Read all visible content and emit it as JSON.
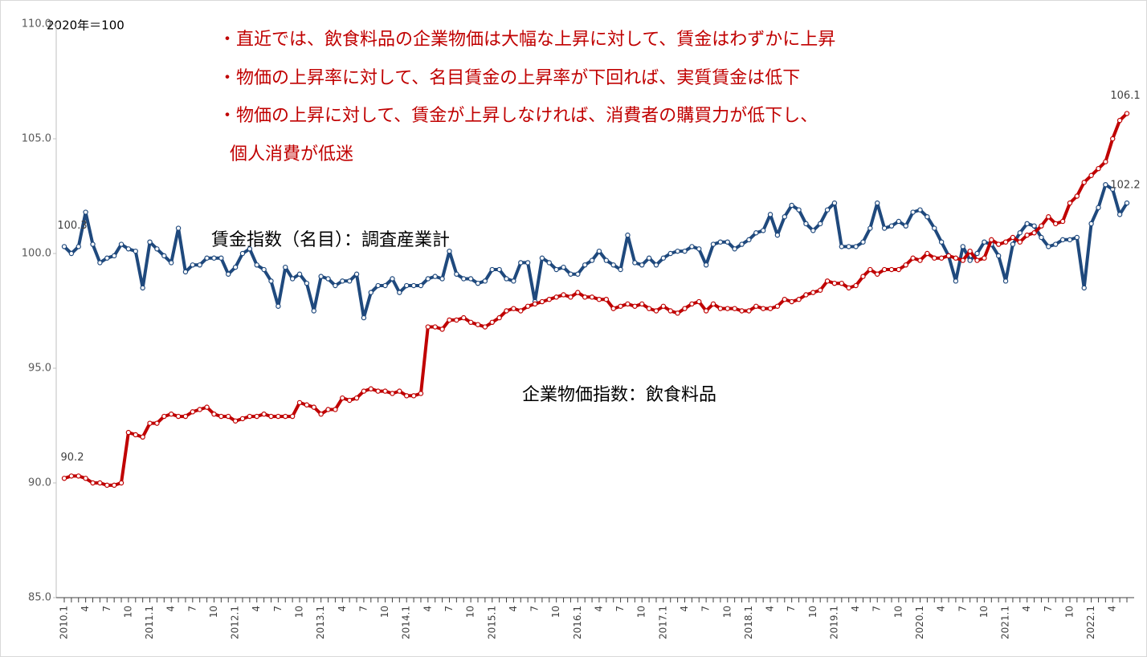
{
  "chart_data": {
    "type": "line",
    "unit_label": "2020年＝100",
    "annotations": [
      "・直近では、飲食料品の企業物価は大幅な上昇に対して、賃金はわずかに上昇",
      "・物価の上昇率に対して、名目賃金の上昇率が下回れば、実質賃金は低下",
      "・物価の上昇に対して、賃金が上昇しなければ、消費者の購買力が低下し、",
      "個人消費が低迷"
    ],
    "categories": [
      "2010.1",
      null,
      null,
      "4",
      null,
      null,
      "7",
      null,
      null,
      "10",
      null,
      null,
      "2011.1",
      null,
      null,
      "4",
      null,
      null,
      "7",
      null,
      null,
      "10",
      null,
      null,
      "2012.1",
      null,
      null,
      "4",
      null,
      null,
      "7",
      null,
      null,
      "10",
      null,
      null,
      "2013.1",
      null,
      null,
      "4",
      null,
      null,
      "7",
      null,
      null,
      "10",
      null,
      null,
      "2014.1",
      null,
      null,
      "4",
      null,
      null,
      "7",
      null,
      null,
      "10",
      null,
      null,
      "2015.1",
      null,
      null,
      "4",
      null,
      null,
      "7",
      null,
      null,
      "10",
      null,
      null,
      "2016.1",
      null,
      null,
      "4",
      null,
      null,
      "7",
      null,
      null,
      "10",
      null,
      null,
      "2017.1",
      null,
      null,
      "4",
      null,
      null,
      "7",
      null,
      null,
      "10",
      null,
      null,
      "2018.1",
      null,
      null,
      "4",
      null,
      null,
      "7",
      null,
      null,
      "10",
      null,
      null,
      "2019.1",
      null,
      null,
      "4",
      null,
      null,
      "7",
      null,
      null,
      "10",
      null,
      null,
      "2020.1",
      null,
      null,
      "4",
      null,
      null,
      "7",
      null,
      null,
      "10",
      null,
      null,
      "2021.1",
      null,
      null,
      "4",
      null,
      null,
      "7",
      null,
      null,
      "10",
      null,
      null,
      "2022.1",
      null,
      null,
      "4",
      null,
      null
    ],
    "series": [
      {
        "name": "賃金指数（名目）：調査産業計",
        "color": "#1f497d",
        "values": [
          100.3,
          100.0,
          100.3,
          101.8,
          100.4,
          99.6,
          99.8,
          99.9,
          100.4,
          100.2,
          100.1,
          98.5,
          100.5,
          100.2,
          99.9,
          99.6,
          101.1,
          99.2,
          99.5,
          99.5,
          99.8,
          99.8,
          99.8,
          99.1,
          99.4,
          100.0,
          100.2,
          99.5,
          99.3,
          98.8,
          97.7,
          99.4,
          98.9,
          99.1,
          98.7,
          97.5,
          99.0,
          98.9,
          98.6,
          98.8,
          98.8,
          99.1,
          97.2,
          98.3,
          98.6,
          98.6,
          98.9,
          98.3,
          98.6,
          98.6,
          98.6,
          98.9,
          99.0,
          98.9,
          100.1,
          99.1,
          98.9,
          98.9,
          98.7,
          98.8,
          99.3,
          99.3,
          98.9,
          98.8,
          99.6,
          99.6,
          97.9,
          99.8,
          99.6,
          99.3,
          99.4,
          99.1,
          99.1,
          99.5,
          99.7,
          100.1,
          99.7,
          99.5,
          99.3,
          100.8,
          99.6,
          99.5,
          99.8,
          99.5,
          99.8,
          100.0,
          100.1,
          100.1,
          100.3,
          100.2,
          99.5,
          100.4,
          100.5,
          100.5,
          100.2,
          100.4,
          100.6,
          100.9,
          101.0,
          101.7,
          100.8,
          101.6,
          102.1,
          101.9,
          101.3,
          101.0,
          101.3,
          101.9,
          102.2,
          100.3,
          100.3,
          100.3,
          100.5,
          101.1,
          102.2,
          101.1,
          101.2,
          101.4,
          101.2,
          101.8,
          101.9,
          101.6,
          101.1,
          100.5,
          99.9,
          98.8,
          100.3,
          99.7,
          100.0,
          100.5,
          100.4,
          99.9,
          98.8,
          100.4,
          100.9,
          101.3,
          101.2,
          100.7,
          100.3,
          100.4,
          100.6,
          100.6,
          100.7,
          98.5,
          101.3,
          102.0,
          103.0,
          102.8,
          101.7,
          102.2
        ]
      },
      {
        "name": "企業物価指数：飲食料品",
        "color": "#c00000",
        "values": [
          90.2,
          90.3,
          90.3,
          90.2,
          90.0,
          90.0,
          89.9,
          89.9,
          90.0,
          92.2,
          92.1,
          92.0,
          92.6,
          92.6,
          92.9,
          93.0,
          92.9,
          92.9,
          93.1,
          93.2,
          93.3,
          93.0,
          92.9,
          92.9,
          92.7,
          92.8,
          92.9,
          92.9,
          93.0,
          92.9,
          92.9,
          92.9,
          92.9,
          93.5,
          93.4,
          93.3,
          93.0,
          93.2,
          93.2,
          93.7,
          93.6,
          93.7,
          94.0,
          94.1,
          94.0,
          94.0,
          93.9,
          94.0,
          93.8,
          93.8,
          93.9,
          96.8,
          96.8,
          96.7,
          97.1,
          97.1,
          97.2,
          97.0,
          96.9,
          96.8,
          97.0,
          97.2,
          97.5,
          97.6,
          97.5,
          97.7,
          97.8,
          97.9,
          98.0,
          98.1,
          98.2,
          98.1,
          98.3,
          98.1,
          98.1,
          98.0,
          98.0,
          97.6,
          97.7,
          97.8,
          97.7,
          97.8,
          97.6,
          97.5,
          97.7,
          97.5,
          97.4,
          97.6,
          97.8,
          97.9,
          97.5,
          97.8,
          97.6,
          97.6,
          97.6,
          97.5,
          97.5,
          97.7,
          97.6,
          97.6,
          97.7,
          98.0,
          97.9,
          98.0,
          98.2,
          98.3,
          98.4,
          98.8,
          98.7,
          98.7,
          98.5,
          98.6,
          99.0,
          99.3,
          99.1,
          99.3,
          99.3,
          99.3,
          99.5,
          99.8,
          99.7,
          100.0,
          99.8,
          99.8,
          99.9,
          99.8,
          99.7,
          100.1,
          99.7,
          99.8,
          100.6,
          100.4,
          100.5,
          100.7,
          100.5,
          100.8,
          100.9,
          101.2,
          101.6,
          101.3,
          101.4,
          102.2,
          102.5,
          103.1,
          103.4,
          103.7,
          104.0,
          105.0,
          105.8,
          106.1
        ]
      }
    ],
    "data_labels": "ends",
    "ylim": [
      85,
      110
    ],
    "yticks": [
      {
        "value": 85,
        "label": "85.0"
      },
      {
        "value": 90,
        "label": "90.0"
      },
      {
        "value": 95,
        "label": "95.0"
      },
      {
        "value": 100,
        "label": "100.0"
      },
      {
        "value": 105,
        "label": "105.0"
      },
      {
        "value": 110,
        "label": "110.0"
      }
    ],
    "grid": false
  }
}
